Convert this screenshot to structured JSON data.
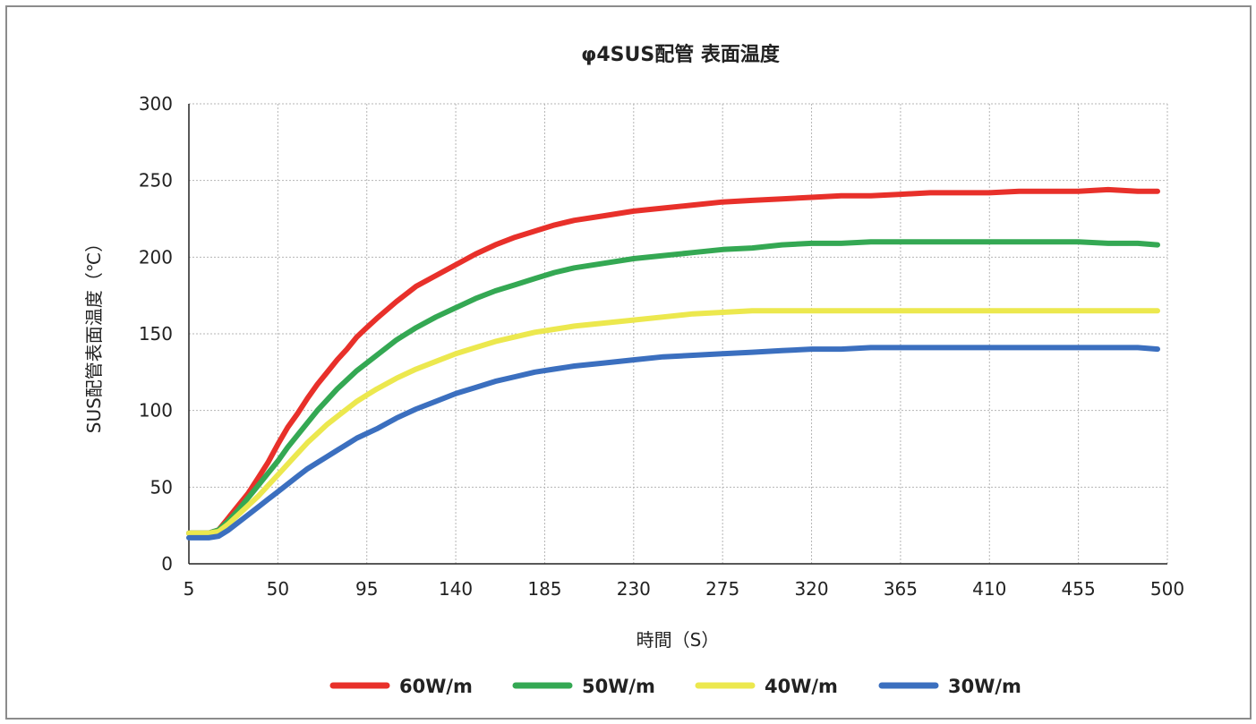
{
  "chart_data": {
    "type": "line",
    "title": "φ4SUS配管 表面温度",
    "xlabel": "時間（S）",
    "ylabel": "SUS配管表面温度（℃）",
    "xlim": [
      5,
      500
    ],
    "ylim": [
      0,
      300
    ],
    "xticks": [
      5,
      50,
      95,
      140,
      185,
      230,
      275,
      320,
      365,
      410,
      455,
      500
    ],
    "yticks": [
      0,
      50,
      100,
      150,
      200,
      250,
      300
    ],
    "grid": true,
    "legend_position": "bottom",
    "x": [
      5,
      10,
      15,
      20,
      25,
      30,
      35,
      40,
      45,
      50,
      55,
      60,
      65,
      70,
      75,
      80,
      85,
      90,
      95,
      100,
      110,
      120,
      130,
      140,
      150,
      160,
      170,
      180,
      190,
      200,
      215,
      230,
      245,
      260,
      275,
      290,
      305,
      320,
      335,
      350,
      365,
      380,
      395,
      410,
      425,
      440,
      455,
      470,
      485,
      495
    ],
    "series": [
      {
        "name": "60W/m",
        "color": "#e8302a",
        "values": [
          20,
          20,
          20,
          22,
          30,
          38,
          46,
          56,
          66,
          78,
          89,
          98,
          108,
          117,
          125,
          133,
          140,
          148,
          154,
          160,
          171,
          181,
          188,
          195,
          202,
          208,
          213,
          217,
          221,
          224,
          227,
          230,
          232,
          234,
          236,
          237,
          238,
          239,
          240,
          240,
          241,
          242,
          242,
          242,
          243,
          243,
          243,
          244,
          243,
          243
        ]
      },
      {
        "name": "50W/m",
        "color": "#34a853",
        "values": [
          20,
          20,
          20,
          22,
          28,
          35,
          43,
          51,
          59,
          67,
          76,
          84,
          92,
          100,
          107,
          114,
          120,
          126,
          131,
          136,
          146,
          154,
          161,
          167,
          173,
          178,
          182,
          186,
          190,
          193,
          196,
          199,
          201,
          203,
          205,
          206,
          208,
          209,
          209,
          210,
          210,
          210,
          210,
          210,
          210,
          210,
          210,
          209,
          209,
          208
        ]
      },
      {
        "name": "40W/m",
        "color": "#ece84e",
        "values": [
          20,
          20,
          20,
          21,
          26,
          32,
          38,
          44,
          51,
          58,
          65,
          72,
          79,
          85,
          91,
          96,
          101,
          106,
          110,
          114,
          121,
          127,
          132,
          137,
          141,
          145,
          148,
          151,
          153,
          155,
          157,
          159,
          161,
          163,
          164,
          165,
          165,
          165,
          165,
          165,
          165,
          165,
          165,
          165,
          165,
          165,
          165,
          165,
          165,
          165
        ]
      },
      {
        "name": "30W/m",
        "color": "#3b6fbf",
        "values": [
          17,
          17,
          17,
          18,
          22,
          27,
          32,
          37,
          42,
          47,
          52,
          57,
          62,
          66,
          70,
          74,
          78,
          82,
          85,
          88,
          95,
          101,
          106,
          111,
          115,
          119,
          122,
          125,
          127,
          129,
          131,
          133,
          135,
          136,
          137,
          138,
          139,
          140,
          140,
          141,
          141,
          141,
          141,
          141,
          141,
          141,
          141,
          141,
          141,
          140
        ]
      }
    ]
  }
}
